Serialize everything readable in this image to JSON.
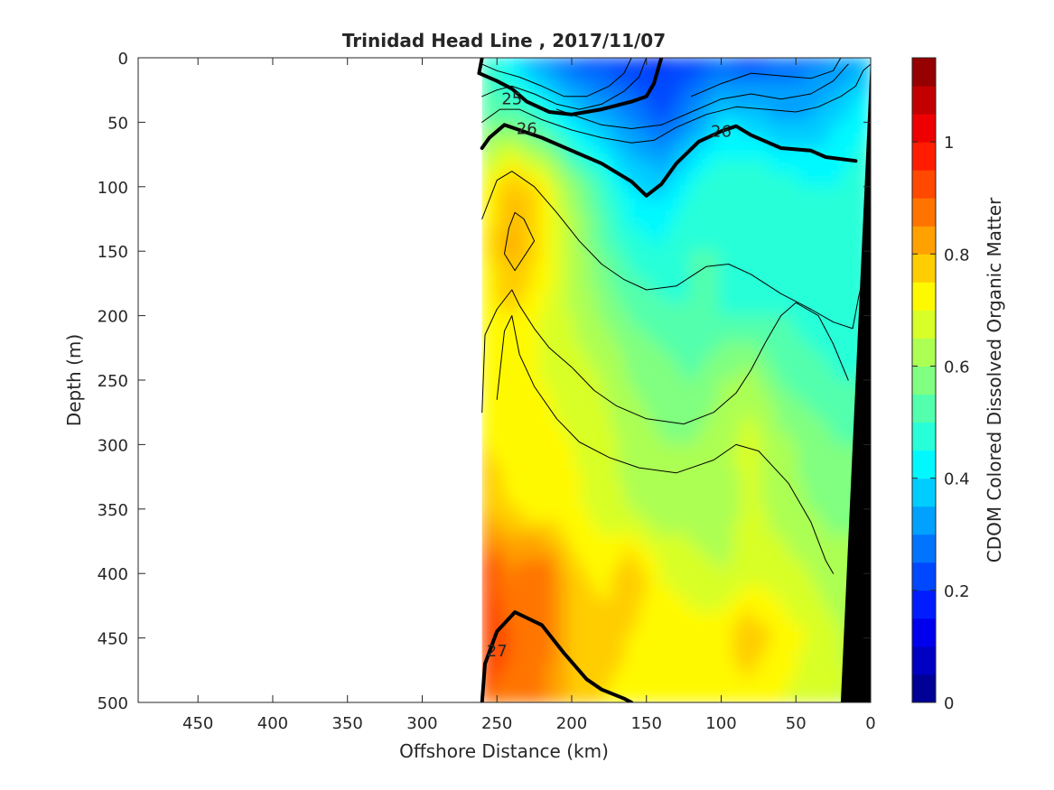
{
  "chart_data": {
    "type": "heatmap",
    "title": "Trinidad Head Line , 2017/11/07",
    "xlabel": "Offshore Distance (km)",
    "ylabel": "Depth (m)",
    "colorbar_label": "CDOM Colored Dissolved Organic Matter",
    "xlim": [
      490,
      0
    ],
    "ylim": [
      0,
      500
    ],
    "x_reversed": true,
    "y_reversed": true,
    "x_ticks": [
      450,
      400,
      350,
      300,
      250,
      200,
      150,
      100,
      50,
      0
    ],
    "y_ticks": [
      0,
      50,
      100,
      150,
      200,
      250,
      300,
      350,
      400,
      450,
      500
    ],
    "colorbar_range": [
      0,
      1.15
    ],
    "colorbar_ticks": [
      0,
      0.2,
      0.4,
      0.6,
      0.8,
      1
    ],
    "data_extent_x": [
      260,
      0
    ],
    "field_grid": {
      "x": [
        260,
        240,
        220,
        200,
        180,
        160,
        140,
        120,
        100,
        80,
        60,
        40,
        20,
        0
      ],
      "depth": [
        0,
        50,
        100,
        150,
        200,
        250,
        300,
        350,
        400,
        450,
        500
      ],
      "values": [
        [
          0.5,
          0.4,
          0.3,
          0.25,
          0.22,
          0.2,
          0.18,
          0.22,
          0.25,
          0.22,
          0.25,
          0.28,
          0.3,
          0.35
        ],
        [
          0.55,
          0.55,
          0.5,
          0.4,
          0.35,
          0.3,
          0.25,
          0.3,
          0.4,
          0.38,
          0.35,
          0.35,
          0.4,
          0.45
        ],
        [
          0.7,
          0.8,
          0.75,
          0.6,
          0.5,
          0.4,
          0.38,
          0.45,
          0.5,
          0.5,
          0.48,
          0.45,
          0.45,
          0.5
        ],
        [
          0.72,
          0.82,
          0.75,
          0.65,
          0.55,
          0.48,
          0.45,
          0.5,
          0.5,
          0.48,
          0.48,
          0.45,
          0.45,
          0.48
        ],
        [
          0.72,
          0.75,
          0.7,
          0.65,
          0.6,
          0.55,
          0.52,
          0.5,
          0.5,
          0.5,
          0.5,
          0.48,
          0.48,
          0.5
        ],
        [
          0.7,
          0.72,
          0.7,
          0.68,
          0.65,
          0.6,
          0.58,
          0.55,
          0.6,
          0.62,
          0.55,
          0.52,
          0.5,
          0.5
        ],
        [
          0.75,
          0.72,
          0.72,
          0.7,
          0.68,
          0.62,
          0.6,
          0.6,
          0.62,
          0.68,
          0.62,
          0.58,
          0.55,
          0.55
        ],
        [
          0.8,
          0.75,
          0.72,
          0.72,
          0.68,
          0.65,
          0.62,
          0.62,
          0.6,
          0.68,
          0.62,
          0.6,
          0.58,
          0.58
        ],
        [
          0.95,
          0.85,
          0.9,
          0.78,
          0.72,
          0.8,
          0.7,
          0.68,
          0.65,
          0.68,
          0.68,
          0.65,
          0.62,
          0.62
        ],
        [
          0.95,
          0.9,
          0.88,
          0.8,
          0.78,
          0.75,
          0.72,
          0.72,
          0.72,
          0.8,
          0.72,
          0.7,
          0.65,
          0.65
        ],
        [
          0.9,
          0.88,
          0.85,
          0.8,
          0.75,
          0.72,
          0.72,
          0.7,
          0.72,
          0.72,
          0.7,
          0.68,
          0.65,
          0.65
        ]
      ]
    },
    "bottom_profile": [
      [
        0,
        0
      ],
      [
        20,
        500
      ],
      [
        0,
        500
      ]
    ],
    "contour_labels": [
      {
        "text": "25",
        "x": 240,
        "depth": 32
      },
      {
        "text": "26",
        "x": 230,
        "depth": 55
      },
      {
        "text": "26",
        "x": 100,
        "depth": 57
      },
      {
        "text": "27",
        "x": 250,
        "depth": 460
      }
    ],
    "contours": [
      {
        "level": "25",
        "bold": true,
        "points": [
          [
            260,
            0
          ],
          [
            262,
            12
          ],
          [
            250,
            18
          ],
          [
            240,
            24
          ],
          [
            230,
            34
          ],
          [
            215,
            42
          ],
          [
            200,
            44
          ],
          [
            180,
            40
          ],
          [
            160,
            34
          ],
          [
            150,
            30
          ],
          [
            145,
            20
          ],
          [
            140,
            0
          ]
        ]
      },
      {
        "level": "26",
        "bold": true,
        "points": [
          [
            260,
            70
          ],
          [
            255,
            62
          ],
          [
            245,
            52
          ],
          [
            235,
            56
          ],
          [
            220,
            62
          ],
          [
            200,
            72
          ],
          [
            180,
            82
          ],
          [
            160,
            96
          ],
          [
            150,
            107
          ],
          [
            140,
            98
          ],
          [
            130,
            82
          ],
          [
            115,
            65
          ],
          [
            100,
            57
          ],
          [
            90,
            53
          ],
          [
            80,
            60
          ],
          [
            60,
            70
          ],
          [
            40,
            72
          ],
          [
            30,
            77
          ],
          [
            10,
            80
          ]
        ]
      },
      {
        "level": "27",
        "bold": true,
        "points": [
          [
            260,
            500
          ],
          [
            258,
            470
          ],
          [
            250,
            445
          ],
          [
            238,
            430
          ],
          [
            220,
            440
          ],
          [
            205,
            462
          ],
          [
            190,
            482
          ],
          [
            180,
            490
          ],
          [
            165,
            497
          ],
          [
            160,
            500
          ]
        ]
      },
      {
        "level": "",
        "bold": false,
        "points": [
          [
            260,
            5
          ],
          [
            250,
            10
          ],
          [
            235,
            15
          ],
          [
            220,
            22
          ],
          [
            205,
            30
          ],
          [
            190,
            30
          ],
          [
            175,
            22
          ],
          [
            165,
            12
          ],
          [
            160,
            0
          ]
        ]
      },
      {
        "level": "",
        "bold": false,
        "points": [
          [
            260,
            30
          ],
          [
            250,
            25
          ],
          [
            240,
            22
          ],
          [
            225,
            28
          ],
          [
            210,
            36
          ],
          [
            195,
            40
          ],
          [
            180,
            36
          ],
          [
            165,
            26
          ],
          [
            155,
            15
          ],
          [
            150,
            0
          ]
        ]
      },
      {
        "level": "",
        "bold": false,
        "points": [
          [
            260,
            50
          ],
          [
            248,
            40
          ],
          [
            235,
            40
          ],
          [
            220,
            48
          ],
          [
            200,
            56
          ],
          [
            180,
            62
          ],
          [
            160,
            66
          ],
          [
            145,
            64
          ],
          [
            130,
            54
          ],
          [
            110,
            44
          ],
          [
            90,
            38
          ],
          [
            70,
            40
          ],
          [
            50,
            42
          ],
          [
            35,
            38
          ],
          [
            20,
            30
          ],
          [
            10,
            22
          ],
          [
            5,
            10
          ],
          [
            0,
            5
          ]
        ]
      },
      {
        "level": "",
        "bold": false,
        "points": [
          [
            210,
            40
          ],
          [
            180,
            52
          ],
          [
            160,
            55
          ],
          [
            140,
            52
          ],
          [
            120,
            42
          ],
          [
            100,
            32
          ],
          [
            80,
            28
          ],
          [
            60,
            32
          ],
          [
            40,
            28
          ],
          [
            25,
            18
          ],
          [
            15,
            5
          ]
        ]
      },
      {
        "level": "",
        "bold": false,
        "points": [
          [
            120,
            30
          ],
          [
            100,
            20
          ],
          [
            80,
            12
          ],
          [
            60,
            14
          ],
          [
            40,
            16
          ],
          [
            25,
            10
          ],
          [
            20,
            0
          ]
        ]
      },
      {
        "level": "",
        "bold": false,
        "points": [
          [
            260,
            125
          ],
          [
            250,
            95
          ],
          [
            240,
            88
          ],
          [
            225,
            100
          ],
          [
            210,
            120
          ],
          [
            195,
            142
          ],
          [
            180,
            160
          ],
          [
            165,
            172
          ],
          [
            150,
            180
          ],
          [
            130,
            177
          ],
          [
            110,
            162
          ],
          [
            95,
            160
          ],
          [
            80,
            168
          ],
          [
            60,
            183
          ],
          [
            40,
            195
          ],
          [
            25,
            205
          ],
          [
            12,
            210
          ],
          [
            8,
            185
          ],
          [
            2,
            155
          ]
        ]
      },
      {
        "level": "",
        "bold": false,
        "points": [
          [
            245,
            152
          ],
          [
            242,
            132
          ],
          [
            238,
            120
          ],
          [
            232,
            125
          ],
          [
            225,
            142
          ],
          [
            238,
            165
          ],
          [
            245,
            152
          ]
        ]
      },
      {
        "level": "",
        "bold": false,
        "points": [
          [
            260,
            275
          ],
          [
            258,
            215
          ],
          [
            250,
            195
          ],
          [
            240,
            180
          ],
          [
            235,
            192
          ],
          [
            225,
            210
          ],
          [
            215,
            225
          ],
          [
            200,
            240
          ],
          [
            185,
            258
          ],
          [
            170,
            270
          ],
          [
            150,
            280
          ],
          [
            125,
            284
          ],
          [
            105,
            275
          ],
          [
            90,
            260
          ],
          [
            80,
            242
          ],
          [
            70,
            220
          ],
          [
            60,
            200
          ],
          [
            50,
            190
          ],
          [
            35,
            200
          ],
          [
            25,
            222
          ],
          [
            15,
            250
          ]
        ]
      },
      {
        "level": "",
        "bold": false,
        "points": [
          [
            250,
            265
          ],
          [
            245,
            212
          ],
          [
            240,
            200
          ],
          [
            235,
            230
          ],
          [
            225,
            255
          ],
          [
            210,
            280
          ],
          [
            195,
            298
          ],
          [
            175,
            310
          ],
          [
            155,
            318
          ],
          [
            130,
            322
          ],
          [
            105,
            312
          ],
          [
            90,
            300
          ],
          [
            75,
            305
          ],
          [
            55,
            330
          ],
          [
            40,
            360
          ],
          [
            30,
            390
          ],
          [
            25,
            400
          ]
        ]
      }
    ]
  }
}
